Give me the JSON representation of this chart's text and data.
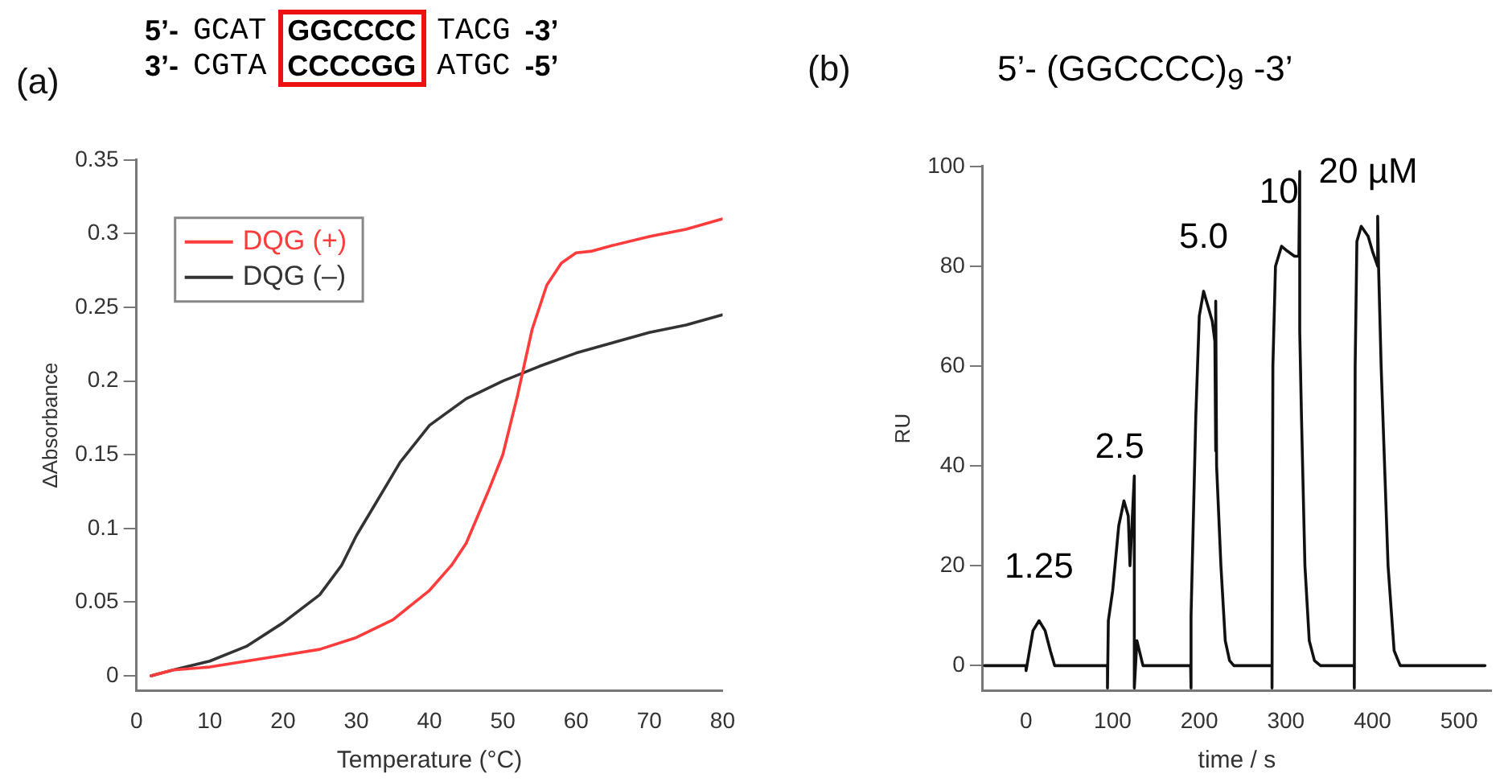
{
  "chart_data": [
    {
      "type": "line",
      "title": "(a)",
      "annotations": [
        "5’- GCAT GGCCCC TACG -3’",
        "3’- CGTA CCCCGG ATGC -5’"
      ],
      "xlabel": "Temperature (°C)",
      "ylabel": "ΔAbsorbance",
      "xlim": [
        0,
        80
      ],
      "xticks": [
        0,
        10,
        20,
        30,
        40,
        50,
        60,
        70,
        80
      ],
      "ylim": [
        -0.01,
        0.35
      ],
      "yticks": [
        0,
        0.05,
        0.1,
        0.15,
        0.2,
        0.25,
        0.3,
        0.35
      ],
      "grid": false,
      "legend": "top left",
      "series": [
        {
          "name": "DQG (+)",
          "color": "#ff3b3b",
          "x": [
            2,
            5,
            10,
            15,
            20,
            25,
            30,
            35,
            40,
            43,
            45,
            48,
            50,
            52,
            54,
            56,
            58,
            60,
            62,
            65,
            70,
            75,
            80
          ],
          "values": [
            0,
            0.004,
            0.006,
            0.01,
            0.014,
            0.018,
            0.026,
            0.038,
            0.058,
            0.075,
            0.09,
            0.125,
            0.15,
            0.19,
            0.235,
            0.265,
            0.28,
            0.287,
            0.288,
            0.292,
            0.298,
            0.303,
            0.31
          ]
        },
        {
          "name": "DQG (–)",
          "color": "#333333",
          "x": [
            2,
            5,
            10,
            15,
            20,
            25,
            28,
            30,
            33,
            36,
            40,
            45,
            50,
            55,
            60,
            65,
            70,
            75,
            80
          ],
          "values": [
            0,
            0.004,
            0.01,
            0.02,
            0.036,
            0.055,
            0.075,
            0.095,
            0.12,
            0.145,
            0.17,
            0.188,
            0.2,
            0.21,
            0.219,
            0.226,
            0.233,
            0.238,
            0.245
          ]
        }
      ]
    },
    {
      "type": "line",
      "title": "(b)",
      "subtitle": "5’- (GGCCCC)$_{9}$ -3’",
      "xlabel": "time / s",
      "ylabel": "RU",
      "xlim": [
        -50,
        537
      ],
      "xticks": [
        0,
        100,
        200,
        300,
        400,
        500
      ],
      "ylim": [
        -5,
        100
      ],
      "yticks": [
        0,
        20,
        40,
        60,
        80,
        100
      ],
      "grid": false,
      "legend": false,
      "annotations": [
        {
          "text": "1.25",
          "x": 15,
          "y": 9
        },
        {
          "text": "2.5",
          "x": 108,
          "y": 33
        },
        {
          "text": "5.0",
          "x": 205,
          "y": 75
        },
        {
          "text": "10",
          "x": 292,
          "y": 84
        },
        {
          "text": "20 µM",
          "x": 395,
          "y": 88
        }
      ],
      "series": [
        {
          "color": "#111111",
          "x": [
            -48,
            0,
            0,
            3,
            8,
            15,
            22,
            28,
            33,
            94,
            94,
            95,
            100,
            107,
            113,
            118,
            120,
            125,
            125,
            128,
            135,
            190,
            190,
            191,
            196,
            200,
            205,
            210,
            215,
            218,
            219,
            219,
            220,
            225,
            230,
            235,
            240,
            284,
            284,
            285,
            288,
            295,
            302,
            310,
            315,
            316,
            316,
            318,
            322,
            327,
            333,
            340,
            379,
            379,
            380,
            382,
            387,
            395,
            400,
            406,
            406,
            407,
            410,
            418,
            425,
            432,
            530
          ],
          "values": [
            0,
            0,
            -1,
            2,
            7,
            9,
            7,
            3,
            0,
            0,
            -4.5,
            9,
            15,
            28,
            33,
            30,
            20,
            38,
            -4.5,
            5,
            0,
            0,
            -4.5,
            10,
            50,
            70,
            75,
            72,
            69,
            65,
            43,
            73,
            40,
            20,
            5,
            1,
            0,
            0,
            -4.5,
            60,
            80,
            84,
            83,
            82,
            82,
            99,
            67,
            50,
            20,
            5,
            1,
            0,
            0,
            -4.5,
            60,
            85,
            88,
            86,
            83,
            80,
            90,
            80,
            60,
            20,
            3,
            0,
            0
          ]
        }
      ]
    }
  ]
}
